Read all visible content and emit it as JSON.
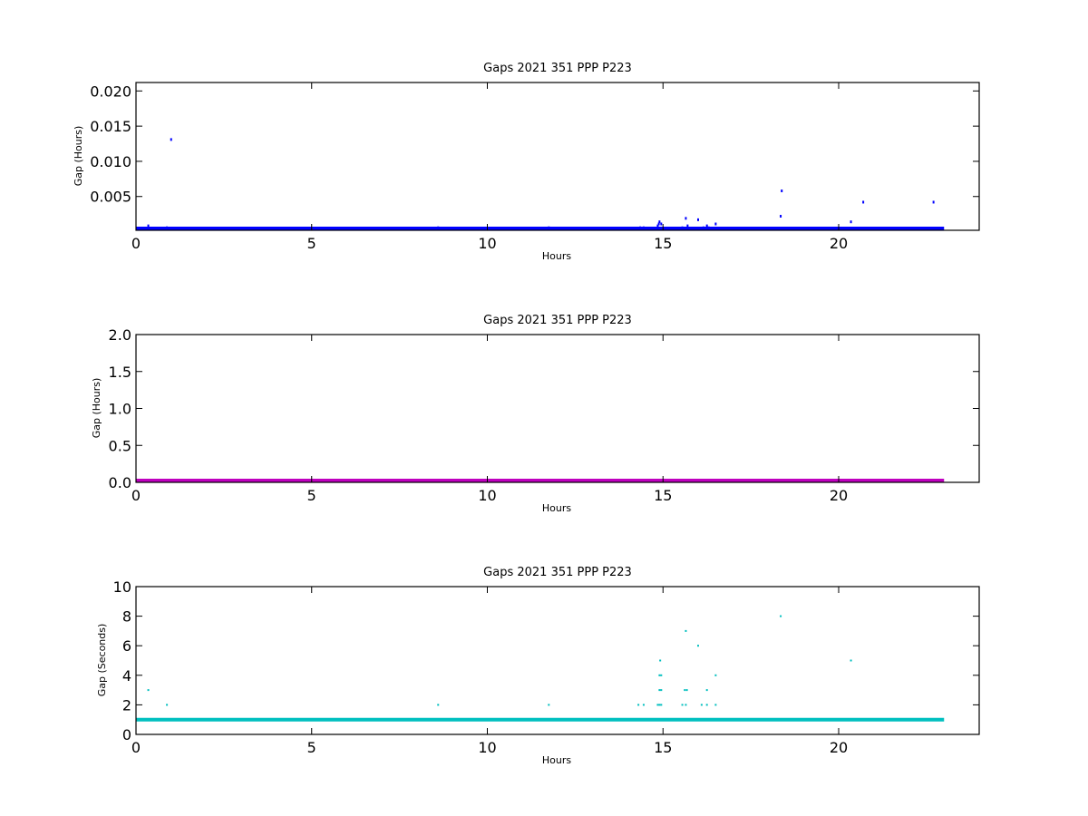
{
  "chart_data": [
    {
      "type": "scatter",
      "title": "Gaps 2021 351 PPP  P223",
      "xlabel": "Hours",
      "ylabel": "Gap (Hours)",
      "xlim": [
        0,
        24
      ],
      "ylim": [
        0.0002,
        0.0212
      ],
      "x_ticks": [
        "0",
        "5",
        "10",
        "15",
        "20"
      ],
      "y_ticks": [
        "0.005",
        "0.010",
        "0.015",
        "0.020"
      ],
      "grid": false,
      "color": "#0000ff",
      "series": [
        {
          "baseline": {
            "x_start": 0,
            "x_end": 23.0,
            "y": 0.000278
          },
          "points": [
            [
              0.35,
              0.00083
            ],
            [
              0.88,
              0.00056
            ],
            [
              1.0,
              0.0131
            ],
            [
              8.6,
              0.00056
            ],
            [
              11.75,
              0.00056
            ],
            [
              14.35,
              0.00056
            ],
            [
              14.45,
              0.00056
            ],
            [
              14.85,
              0.00083
            ],
            [
              14.88,
              0.0011
            ],
            [
              14.9,
              0.0014
            ],
            [
              14.95,
              0.0011
            ],
            [
              15.55,
              0.00056
            ],
            [
              15.65,
              0.0019
            ],
            [
              15.7,
              0.00083
            ],
            [
              16.0,
              0.0017
            ],
            [
              16.15,
              0.00056
            ],
            [
              16.25,
              0.00083
            ],
            [
              16.3,
              0.00056
            ],
            [
              16.5,
              0.0011
            ],
            [
              18.35,
              0.0022
            ],
            [
              18.38,
              0.0058
            ],
            [
              20.35,
              0.0014
            ],
            [
              20.7,
              0.0042
            ],
            [
              22.7,
              0.0042
            ]
          ]
        }
      ]
    },
    {
      "type": "scatter",
      "title": "Gaps 2021 351 PPP  P223",
      "xlabel": "Hours",
      "ylabel": "Gap (Hours)",
      "xlim": [
        0,
        24
      ],
      "ylim": [
        0,
        2.0
      ],
      "x_ticks": [
        "0",
        "5",
        "10",
        "15",
        "20"
      ],
      "y_ticks": [
        "0.0",
        "0.5",
        "1.0",
        "1.5",
        "2.0"
      ],
      "grid": false,
      "color": "#bf00bf",
      "series": [
        {
          "baseline": {
            "x_start": 0,
            "x_end": 23.0,
            "y": 0.0
          },
          "points": []
        }
      ]
    },
    {
      "type": "scatter",
      "title": "Gaps 2021 351 PPP  P223",
      "xlabel": "Hours",
      "ylabel": "Gap (Seconds)",
      "xlim": [
        0,
        24
      ],
      "ylim": [
        0,
        10
      ],
      "x_ticks": [
        "0",
        "5",
        "10",
        "15",
        "20"
      ],
      "y_ticks": [
        "0",
        "2",
        "4",
        "6",
        "8",
        "10"
      ],
      "grid": false,
      "color": "#00bfbf",
      "series": [
        {
          "baseline": {
            "x_start": 0,
            "x_end": 23.0,
            "y": 1
          },
          "points": [
            [
              0.35,
              3
            ],
            [
              0.88,
              2
            ],
            [
              8.6,
              2
            ],
            [
              11.75,
              2
            ],
            [
              14.3,
              2
            ],
            [
              14.45,
              2
            ],
            [
              14.85,
              2
            ],
            [
              14.9,
              2
            ],
            [
              14.95,
              2
            ],
            [
              14.9,
              3
            ],
            [
              14.95,
              3
            ],
            [
              14.9,
              4
            ],
            [
              14.95,
              4
            ],
            [
              14.92,
              5
            ],
            [
              15.55,
              2
            ],
            [
              15.65,
              2
            ],
            [
              15.62,
              3
            ],
            [
              15.68,
              3
            ],
            [
              15.65,
              7
            ],
            [
              16.0,
              6
            ],
            [
              16.1,
              2
            ],
            [
              16.25,
              2
            ],
            [
              16.25,
              3
            ],
            [
              16.5,
              2
            ],
            [
              16.5,
              4
            ],
            [
              18.35,
              8
            ],
            [
              20.35,
              5
            ]
          ]
        }
      ]
    }
  ]
}
